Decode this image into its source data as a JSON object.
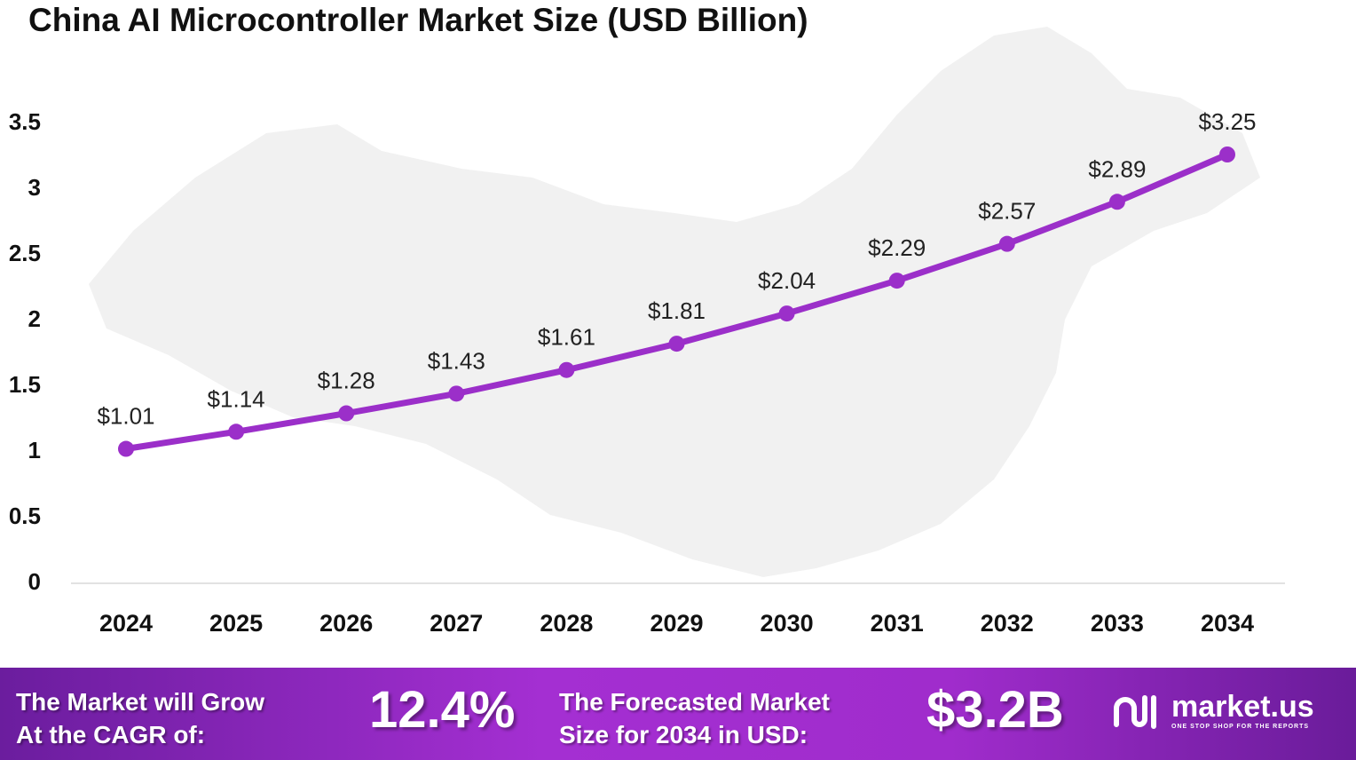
{
  "chart_data": {
    "type": "line",
    "title": "China AI Microcontroller Market Size (USD Billion)",
    "categories": [
      "2024",
      "2025",
      "2026",
      "2027",
      "2028",
      "2029",
      "2030",
      "2031",
      "2032",
      "2033",
      "2034"
    ],
    "values": [
      1.01,
      1.14,
      1.28,
      1.43,
      1.61,
      1.81,
      2.04,
      2.29,
      2.57,
      2.89,
      3.25
    ],
    "data_labels": [
      "$1.01",
      "$1.14",
      "$1.28",
      "$1.43",
      "$1.61",
      "$1.81",
      "$2.04",
      "$2.29",
      "$2.57",
      "$2.89",
      "$3.25"
    ],
    "yticks": [
      "0",
      "0.5",
      "1",
      "1.5",
      "2",
      "2.5",
      "3",
      "3.5"
    ],
    "ylim": [
      0,
      3.5
    ],
    "grid": false,
    "line_color": "#9b2fc9"
  },
  "banner": {
    "cagr_label_line1": "The Market will Grow",
    "cagr_label_line2": "At the CAGR of:",
    "cagr_value": "12.4%",
    "forecast_label_line1": "The Forecasted Market",
    "forecast_label_line2": "Size for 2034 in USD:",
    "forecast_value": "$3.2B",
    "logo_name": "market.us",
    "logo_tagline": "ONE STOP SHOP FOR THE REPORTS"
  }
}
